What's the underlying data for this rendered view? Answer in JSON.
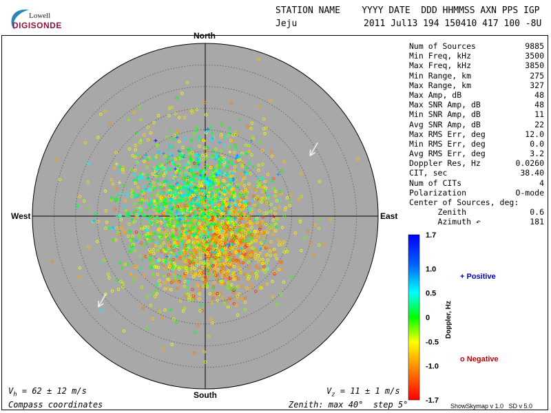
{
  "logo": {
    "top": "Lowell",
    "bottom": "DIGISONDE"
  },
  "header": {
    "columns": "STATION NAME    YYYY DATE  DDD HHMMSS AXN PPS IGP",
    "station": "Jeju",
    "values": "2011 Jul13 194 150410 417 100 -8U"
  },
  "compass": {
    "north": "North",
    "south": "South",
    "east": "East",
    "west": "West"
  },
  "stats": [
    {
      "label": "Num of Sources",
      "value": "9885"
    },
    {
      "label": "Min Freq, kHz",
      "value": "3500"
    },
    {
      "label": "Max Freq, kHz",
      "value": "3850"
    },
    {
      "label": "Min Range, km",
      "value": "275"
    },
    {
      "label": "Max Range, km",
      "value": "327"
    },
    {
      "label": "Max Amp, dB",
      "value": "48"
    },
    {
      "label": "Max SNR Amp, dB",
      "value": "48"
    },
    {
      "label": "Min SNR Amp, dB",
      "value": "11"
    },
    {
      "label": "Avg SNR Amp, dB",
      "value": "22"
    },
    {
      "label": "Max RMS Err, deg",
      "value": "12.0"
    },
    {
      "label": "Min RMS Err, deg",
      "value": "0.0"
    },
    {
      "label": "Avg RMS Err, deg",
      "value": "3.2"
    },
    {
      "label": "Doppler Res, Hz",
      "value": "0.0260"
    },
    {
      "label": "CIT, sec",
      "value": "38.40"
    },
    {
      "label": "Num of CITs",
      "value": "4"
    },
    {
      "label": "Polarization",
      "value": "O-mode"
    },
    {
      "label": "Center of Sources, deg:",
      "value": ""
    },
    {
      "label": "      Zenith",
      "value": "0.6"
    },
    {
      "label": "      Azimuth ↶",
      "value": "181"
    }
  ],
  "colorbar": {
    "title": "Doppler, Hz",
    "ticks": [
      "1.7",
      "1.0",
      "0.5",
      "0",
      "-0.5",
      "-1.0",
      "-1.7"
    ],
    "tick_values": [
      1.7,
      1.0,
      0.5,
      0,
      -0.5,
      -1.0,
      -1.7
    ],
    "min": -1.7,
    "max": 1.7,
    "positive_marker": "+",
    "positive_label": "Positive",
    "positive_color": "#0000c0",
    "negative_marker": "o",
    "negative_label": "Negative",
    "negative_color": "#c00000"
  },
  "footer": {
    "vh_sym": "V",
    "vh_sub": "h",
    "vh_rest": " = 62 ± 12 m/s",
    "vz_sym": "V",
    "vz_sub": "z",
    "vz_rest": " = 11 ± 1 m/s",
    "coords": "Compass coordinates",
    "zenith": "Zenith: max 40°  step 5°",
    "version": "ShowSkymap v 1.0   SD v 5.0"
  },
  "chart_data": {
    "type": "scatter",
    "projection": "polar skymap, zenith angle radial, compass azimuth",
    "zenith_max_deg": 40,
    "zenith_step_deg": 5,
    "grid": true,
    "num_sources": 9885,
    "center_of_sources": {
      "zenith_deg": 0.6,
      "azimuth_deg": 181
    },
    "source_clusters": [
      {
        "name": "negative-core",
        "marker": "o",
        "east_deg": 1.5,
        "north_deg": -3.5,
        "spread_deg": 7,
        "doppler_hz": -0.9
      },
      {
        "name": "southeast-orange",
        "marker": "o",
        "east_deg": 4,
        "north_deg": -7,
        "spread_deg": 5,
        "doppler_hz": -1.1
      },
      {
        "name": "central-yellow",
        "marker": "o",
        "east_deg": -1,
        "north_deg": 0,
        "spread_deg": 11,
        "doppler_hz": -0.5
      },
      {
        "name": "positive-north",
        "marker": "+",
        "east_deg": -1,
        "north_deg": 6,
        "spread_deg": 6,
        "doppler_hz": 0.35
      },
      {
        "name": "positive-west",
        "marker": "+",
        "east_deg": -9,
        "north_deg": 1,
        "spread_deg": 7,
        "doppler_hz": 0.15
      }
    ],
    "velocity_arrows": [
      {
        "at_east_deg": 26,
        "at_north_deg": 17,
        "direction_deg": 210
      },
      {
        "at_east_deg": -23,
        "at_north_deg": -18,
        "direction_deg": 210
      }
    ],
    "velocity": {
      "vh_m_s": 62,
      "vh_err_m_s": 12,
      "vz_m_s": 11,
      "vz_err_m_s": 1
    }
  }
}
